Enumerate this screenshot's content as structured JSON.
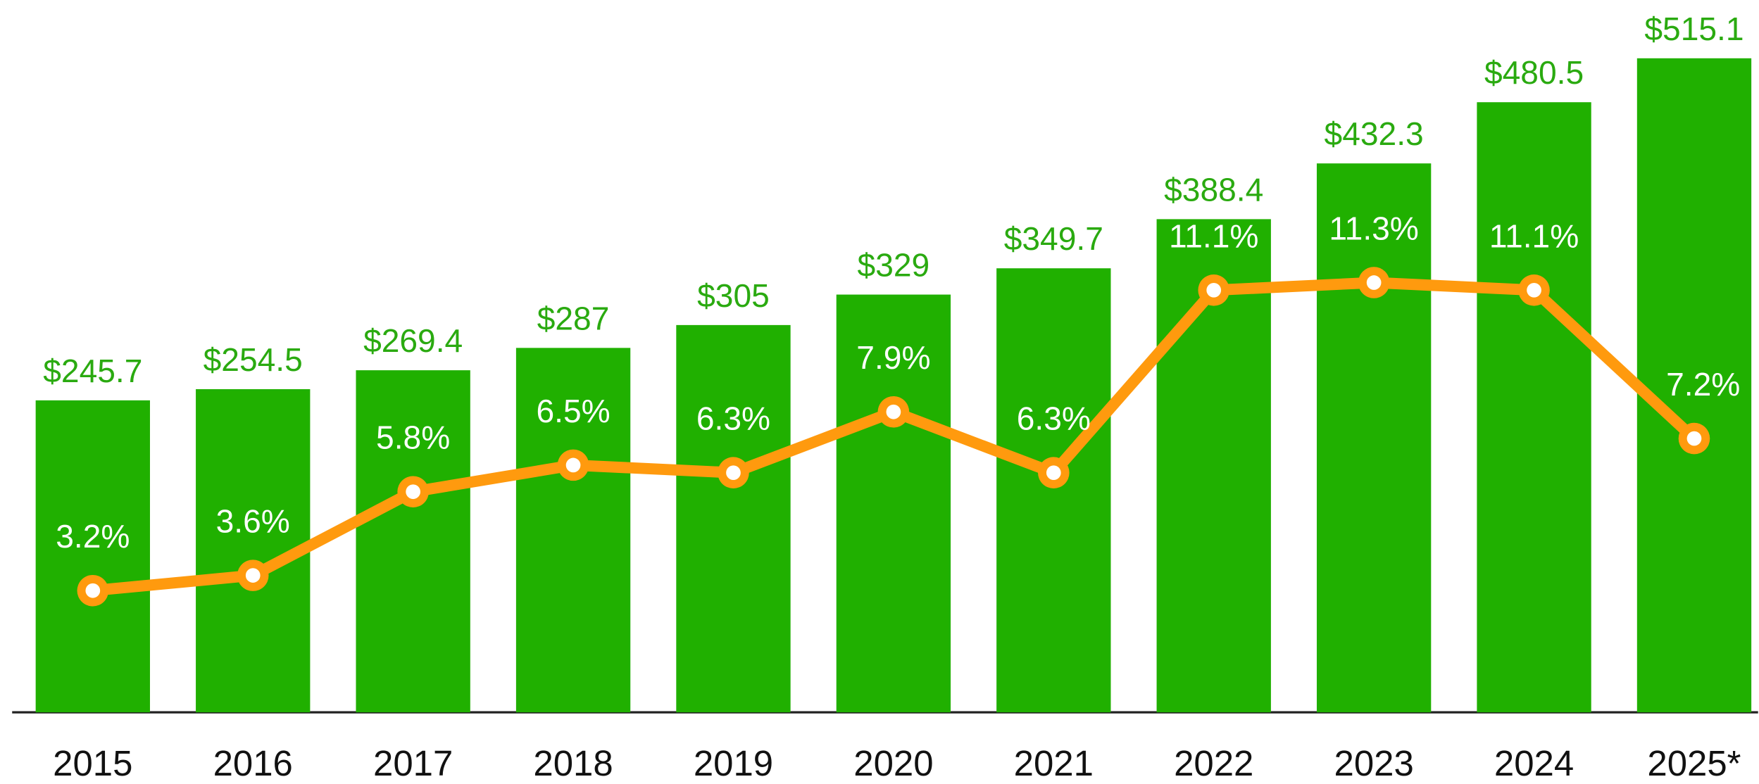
{
  "chart_data": {
    "type": "bar",
    "categories": [
      "2015",
      "2016",
      "2017",
      "2018",
      "2019",
      "2020",
      "2021",
      "2022",
      "2023",
      "2024",
      "2025*"
    ],
    "ylim": [
      0,
      561
    ],
    "y2lim": [
      0,
      18.73
    ],
    "series": [
      {
        "type": "bar",
        "color": "#20b000",
        "values": [
          245.7,
          254.5,
          269.4,
          287,
          305,
          329,
          349.7,
          388.4,
          432.3,
          480.5,
          515.1
        ],
        "value_labels": [
          "$245.7",
          "$254.5",
          "$269.4",
          "$287",
          "$305",
          "$329",
          "$349.7",
          "$388.4",
          "$432.3",
          "$480.5",
          "$515.1"
        ]
      },
      {
        "type": "line",
        "axis": "y2",
        "color": "#ff9a0e",
        "values": [
          3.2,
          3.6,
          5.8,
          6.5,
          6.3,
          7.9,
          6.3,
          11.1,
          11.3,
          11.1,
          7.2
        ],
        "value_labels": [
          "3.2%",
          "3.6%",
          "5.8%",
          "6.5%",
          "6.3%",
          "7.9%",
          "6.3%",
          "11.1%",
          "11.3%",
          "11.1%",
          "7.2%"
        ]
      }
    ]
  }
}
